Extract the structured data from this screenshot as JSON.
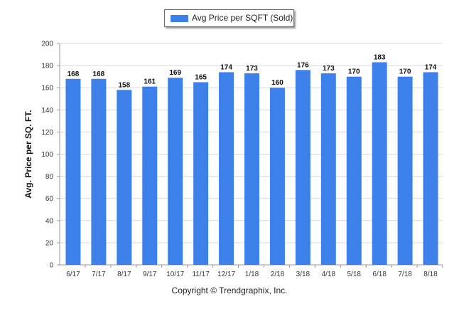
{
  "chart_data": {
    "type": "bar",
    "title": "",
    "xlabel": "",
    "ylabel": "Avg. Price per SQ. FT.",
    "ylim": [
      0,
      200
    ],
    "yticks": [
      0,
      20,
      40,
      60,
      80,
      100,
      120,
      140,
      160,
      180,
      200
    ],
    "grid": true,
    "legend_position": "top-center",
    "categories": [
      "6/17",
      "7/17",
      "8/17",
      "9/17",
      "10/17",
      "11/17",
      "12/17",
      "1/18",
      "2/18",
      "3/18",
      "4/18",
      "5/18",
      "6/18",
      "7/18",
      "8/18"
    ],
    "series": [
      {
        "name": "Avg Price per SQFT (Sold)",
        "color": "#3e80ea",
        "values": [
          168,
          168,
          158,
          161,
          169,
          165,
          174,
          173,
          160,
          176,
          173,
          170,
          183,
          170,
          174
        ]
      }
    ]
  },
  "footer": {
    "copyright": "Copyright © Trendgraphix, Inc."
  },
  "colors": {
    "bar": "#3e80ea",
    "grid": "#d9d9d9",
    "axis": "#9a9a9a"
  }
}
